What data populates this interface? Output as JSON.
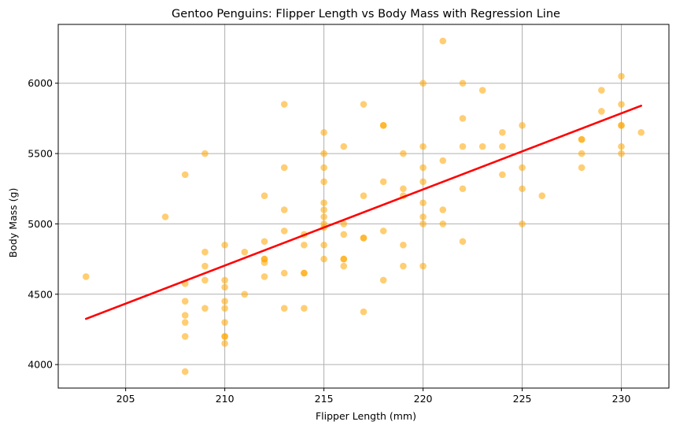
{
  "chart_data": {
    "type": "scatter",
    "title": "Gentoo Penguins: Flipper Length vs Body Mass with Regression Line",
    "xlabel": "Flipper Length (mm)",
    "ylabel": "Body Mass (g)",
    "xlim": [
      201.6,
      232.4
    ],
    "ylim": [
      3833,
      6418
    ],
    "xticks": [
      205,
      210,
      215,
      220,
      225,
      230
    ],
    "yticks": [
      4000,
      4500,
      5000,
      5500,
      6000
    ],
    "grid": true,
    "point_color": "#FFA500",
    "line_color": "#FF0000",
    "regression": {
      "x": [
        203,
        231
      ],
      "y": [
        4325,
        5840
      ]
    },
    "points": [
      [
        203,
        4625
      ],
      [
        207,
        5050
      ],
      [
        208,
        5350
      ],
      [
        208,
        4575
      ],
      [
        208,
        4450
      ],
      [
        208,
        4350
      ],
      [
        208,
        4300
      ],
      [
        208,
        4200
      ],
      [
        208,
        3950
      ],
      [
        209,
        5500
      ],
      [
        209,
        4800
      ],
      [
        209,
        4700
      ],
      [
        209,
        4600
      ],
      [
        209,
        4400
      ],
      [
        210,
        4850
      ],
      [
        210,
        4600
      ],
      [
        210,
        4550
      ],
      [
        210,
        4450
      ],
      [
        210,
        4400
      ],
      [
        210,
        4300
      ],
      [
        210,
        4200
      ],
      [
        210,
        4200
      ],
      [
        210,
        4150
      ],
      [
        211,
        4800
      ],
      [
        211,
        4500
      ],
      [
        212,
        5200
      ],
      [
        212,
        4875
      ],
      [
        212,
        4750
      ],
      [
        212,
        4750
      ],
      [
        212,
        4725
      ],
      [
        212,
        4625
      ],
      [
        213,
        5850
      ],
      [
        213,
        5400
      ],
      [
        213,
        5100
      ],
      [
        213,
        4950
      ],
      [
        213,
        4650
      ],
      [
        213,
        4400
      ],
      [
        214,
        4925
      ],
      [
        214,
        4850
      ],
      [
        214,
        4650
      ],
      [
        214,
        4650
      ],
      [
        214,
        4400
      ],
      [
        215,
        5650
      ],
      [
        215,
        5500
      ],
      [
        215,
        5400
      ],
      [
        215,
        5300
      ],
      [
        215,
        5150
      ],
      [
        215,
        5100
      ],
      [
        215,
        5050
      ],
      [
        215,
        5000
      ],
      [
        215,
        4975
      ],
      [
        215,
        4850
      ],
      [
        215,
        4750
      ],
      [
        216,
        5550
      ],
      [
        216,
        5000
      ],
      [
        216,
        4925
      ],
      [
        216,
        4750
      ],
      [
        216,
        4750
      ],
      [
        216,
        4700
      ],
      [
        217,
        5850
      ],
      [
        217,
        5200
      ],
      [
        217,
        4900
      ],
      [
        217,
        4900
      ],
      [
        217,
        4375
      ],
      [
        218,
        5700
      ],
      [
        218,
        5700
      ],
      [
        218,
        5300
      ],
      [
        218,
        4950
      ],
      [
        218,
        4600
      ],
      [
        219,
        5500
      ],
      [
        219,
        5250
      ],
      [
        219,
        5200
      ],
      [
        219,
        4850
      ],
      [
        219,
        4700
      ],
      [
        220,
        6000
      ],
      [
        220,
        5550
      ],
      [
        220,
        5400
      ],
      [
        220,
        5300
      ],
      [
        220,
        5150
      ],
      [
        220,
        5050
      ],
      [
        220,
        5000
      ],
      [
        220,
        4700
      ],
      [
        221,
        6300
      ],
      [
        221,
        5450
      ],
      [
        221,
        5100
      ],
      [
        221,
        5000
      ],
      [
        222,
        6000
      ],
      [
        222,
        5750
      ],
      [
        222,
        5550
      ],
      [
        222,
        5250
      ],
      [
        222,
        4875
      ],
      [
        223,
        5950
      ],
      [
        223,
        5550
      ],
      [
        224,
        5650
      ],
      [
        224,
        5550
      ],
      [
        224,
        5350
      ],
      [
        225,
        5700
      ],
      [
        225,
        5400
      ],
      [
        225,
        5250
      ],
      [
        225,
        5000
      ],
      [
        226,
        5200
      ],
      [
        228,
        5600
      ],
      [
        228,
        5600
      ],
      [
        228,
        5500
      ],
      [
        228,
        5400
      ],
      [
        229,
        5950
      ],
      [
        229,
        5800
      ],
      [
        230,
        6050
      ],
      [
        230,
        5850
      ],
      [
        230,
        5700
      ],
      [
        230,
        5700
      ],
      [
        230,
        5550
      ],
      [
        230,
        5500
      ],
      [
        231,
        5650
      ]
    ]
  }
}
